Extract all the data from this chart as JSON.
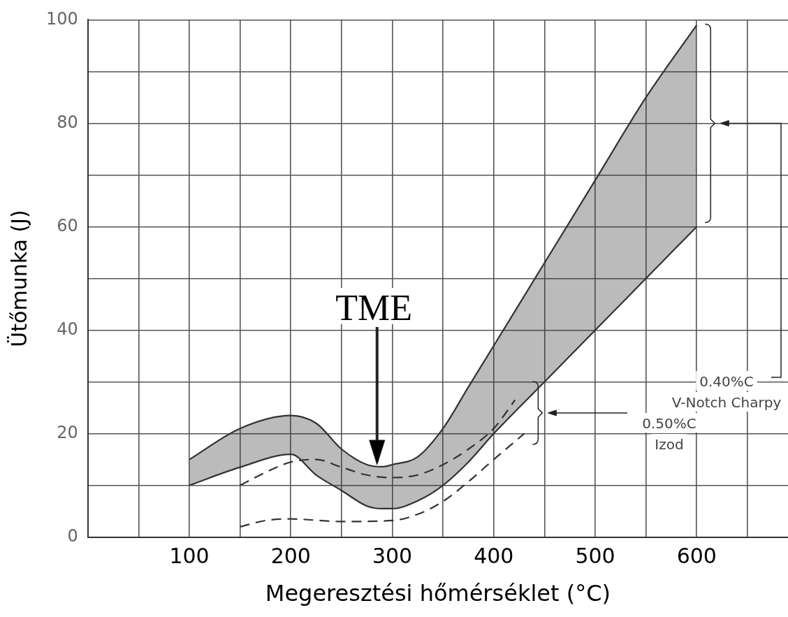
{
  "chart_data": {
    "type": "line",
    "xlabel": "Megeresztési hőmérséklet (°C)",
    "ylabel": "Ütőmunka (J)",
    "xlim": [
      0,
      690
    ],
    "ylim": [
      0,
      100
    ],
    "xticks": [
      {
        "value": 0,
        "label": null
      },
      {
        "value": 50,
        "label": null
      },
      100,
      {
        "value": 150,
        "label": null
      },
      200,
      {
        "value": 250,
        "label": null
      },
      300,
      {
        "value": 350,
        "label": null
      },
      400,
      {
        "value": 450,
        "label": null
      },
      500,
      {
        "value": 550,
        "label": null
      },
      600,
      {
        "value": 650,
        "label": null
      }
    ],
    "yticks": [
      0,
      {
        "value": 10,
        "label": null
      },
      20,
      {
        "value": 30,
        "label": null
      },
      40,
      {
        "value": 50,
        "label": null
      },
      60,
      {
        "value": 70,
        "label": null
      },
      80,
      {
        "value": 90,
        "label": null
      },
      100
    ],
    "grid": true,
    "legend": false,
    "marker": "none",
    "series": [
      {
        "type": "line",
        "color": "#333333",
        "x": [
          100,
          150,
          200,
          225,
          250,
          275,
          290,
          300,
          325,
          350,
          375,
          400,
          450,
          500,
          550,
          600
        ],
        "values": [
          15,
          21,
          23.5,
          22,
          17,
          14,
          13.6,
          14,
          15.5,
          21,
          29,
          37,
          53,
          69,
          85,
          99
        ],
        "lower": [
          10,
          13.5,
          16,
          12,
          9,
          6,
          5.5,
          5.5,
          7,
          10,
          14.5,
          20,
          30,
          40,
          50,
          60
        ],
        "upper": [
          15,
          21,
          23.5,
          22,
          17,
          14,
          13.6,
          14,
          15.5,
          21,
          29,
          37,
          53,
          69,
          85,
          99
        ]
      },
      {
        "type": "line",
        "color": "#333333",
        "x": [
          100,
          150,
          200,
          225,
          250,
          275,
          290,
          300,
          325,
          350,
          375,
          400,
          450,
          500,
          550,
          600
        ],
        "values": [
          10,
          13.5,
          16,
          12,
          9,
          6,
          5.5,
          5.5,
          7,
          10,
          14.5,
          20,
          30,
          40,
          50,
          60
        ]
      },
      {
        "type": "line",
        "color": "#333333",
        "line_style": "dashed",
        "x": [
          150,
          175,
          200,
          225,
          250,
          275,
          300,
          325,
          350,
          375,
          400,
          421
        ],
        "values": [
          10,
          12.5,
          14.5,
          15,
          13.5,
          12,
          11.5,
          12,
          14,
          17,
          21,
          26.5
        ]
      },
      {
        "type": "line",
        "color": "#333333",
        "line_style": "dashed",
        "x": [
          150,
          175,
          200,
          250,
          300,
          325,
          350,
          375,
          400,
          430
        ],
        "values": [
          2,
          3.2,
          3.5,
          3,
          3.2,
          4.4,
          6.9,
          10.7,
          15,
          20
        ]
      }
    ],
    "annotations": [
      "TME",
      "0.40%C\nV-Notch Charpy",
      "0.50%C\nIzod"
    ]
  }
}
